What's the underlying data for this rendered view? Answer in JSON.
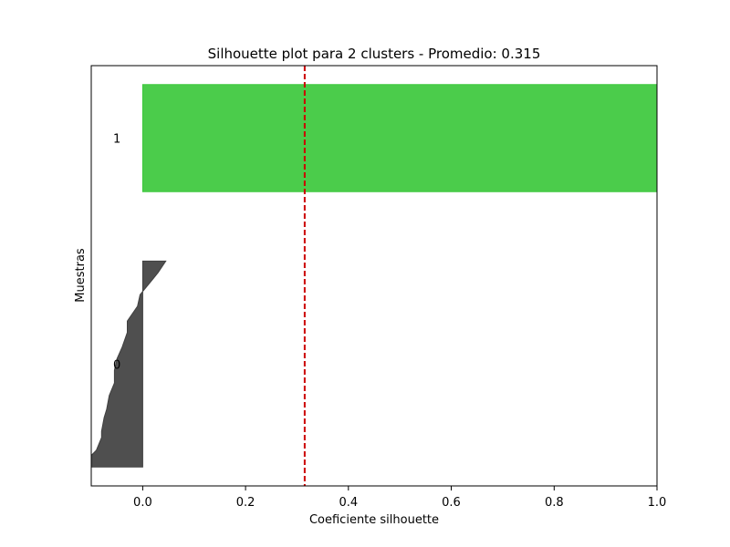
{
  "chart_data": {
    "type": "silhouette",
    "title": "Silhouette plot para 2 clusters - Promedio: 0.315",
    "xlabel": "Coeficiente silhouette",
    "ylabel": "Muestras",
    "xlim": [
      -0.1,
      1.0
    ],
    "ylim": [
      0,
      40
    ],
    "xticks": [
      0.0,
      0.2,
      0.4,
      0.6,
      0.8,
      1.0
    ],
    "xtick_labels": [
      "0.0",
      "0.2",
      "0.4",
      "0.6",
      "0.8",
      "1.0"
    ],
    "grid": false,
    "average_line": {
      "value": 0.315,
      "color": "#cc0000",
      "style": "dashed"
    },
    "clusters": [
      {
        "label": "0",
        "color": "#404040",
        "y_range": [
          1.8,
          21.4
        ],
        "profile": [
          [
            1.8,
            -0.1
          ],
          [
            2.9,
            -0.1
          ],
          [
            3.4,
            -0.09
          ],
          [
            4.6,
            -0.08
          ],
          [
            5.2,
            -0.08
          ],
          [
            6.5,
            -0.075
          ],
          [
            7.3,
            -0.07
          ],
          [
            8.6,
            -0.065
          ],
          [
            9.8,
            -0.055
          ],
          [
            11.0,
            -0.055
          ],
          [
            12.1,
            -0.05
          ],
          [
            13.2,
            -0.04
          ],
          [
            14.6,
            -0.03
          ],
          [
            15.7,
            -0.03
          ],
          [
            16.4,
            -0.02
          ],
          [
            17.1,
            -0.01
          ],
          [
            18.2,
            -0.005
          ],
          [
            18.8,
            0.005
          ],
          [
            19.7,
            0.02
          ],
          [
            20.3,
            0.03
          ],
          [
            21.4,
            0.045
          ],
          [
            21.4,
            0.0
          ]
        ]
      },
      {
        "label": "1",
        "color": "#3cc83c",
        "y_range": [
          28.0,
          38.2
        ],
        "profile": [
          [
            28.0,
            1.0
          ],
          [
            38.2,
            1.0
          ],
          [
            38.2,
            0.0
          ]
        ]
      }
    ]
  }
}
